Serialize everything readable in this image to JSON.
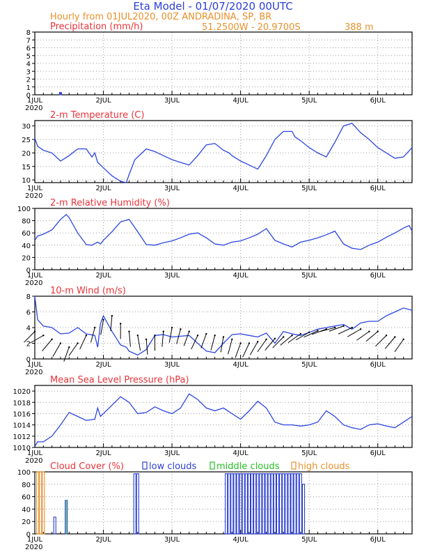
{
  "header": {
    "title": "Eta Model - 01/07/2020 00UTC",
    "subtitle": "Hourly from 01JUL2020, 00Z  ANDRADINA, SP, BR",
    "coords": "51.2500W - 20.9700S",
    "elevation": "388  m"
  },
  "colors": {
    "title": "#2b3fd6",
    "subtitle": "#e8902a",
    "panel_title": "#e8333a",
    "line": "#2b45e0",
    "low": "#2b3fd6",
    "middle": "#22c022",
    "high": "#e8902a",
    "grid": "#999999"
  },
  "time_axis": {
    "day_labels": [
      "1JUL",
      "2JUL",
      "3JUL",
      "4JUL",
      "5JUL",
      "6JUL"
    ],
    "year_label": "2020",
    "hours_total": 132
  },
  "chart_data": [
    {
      "id": "precip",
      "type": "bar",
      "title": "Precipitation (mm/h)",
      "ylim": [
        0,
        8
      ],
      "ticks": [
        0,
        1,
        2,
        3,
        4,
        5,
        6,
        7,
        8
      ],
      "bars": [
        {
          "h": 9,
          "v": 0.3
        }
      ]
    },
    {
      "id": "temp",
      "type": "line",
      "title": "2-m Temperature (C)",
      "ylim": [
        9,
        32
      ],
      "ticks": [
        10,
        15,
        20,
        25,
        30
      ],
      "x": [
        0,
        1,
        3,
        6,
        9,
        12,
        15,
        18,
        20,
        21,
        22,
        24,
        27,
        30,
        32,
        33,
        35,
        39,
        42,
        45,
        48,
        51,
        54,
        57,
        60,
        63,
        66,
        68,
        69,
        72,
        75,
        78,
        81,
        84,
        87,
        90,
        91,
        93,
        96,
        99,
        102,
        105,
        108,
        111,
        114,
        117,
        120,
        123,
        126,
        129,
        132
      ],
      "values": [
        25.5,
        22.5,
        21.0,
        20.0,
        17.0,
        19.0,
        21.5,
        21.5,
        18.5,
        20.0,
        16.5,
        14.5,
        11.5,
        9.5,
        9.0,
        12.0,
        17.5,
        21.5,
        20.5,
        19.0,
        17.5,
        16.5,
        15.5,
        19.0,
        23.0,
        23.5,
        21.0,
        20.0,
        19.0,
        17.0,
        15.5,
        14.0,
        19.0,
        25.0,
        28.0,
        28.0,
        26.0,
        24.5,
        22.0,
        20.0,
        18.5,
        24.0,
        30.0,
        31.0,
        27.5,
        25.0,
        22.0,
        20.0,
        18.0,
        18.5,
        22.0
      ]
    },
    {
      "id": "rh",
      "type": "line",
      "title": "2-m Relative Humidity (%)",
      "ylim": [
        0,
        100
      ],
      "ticks": [
        0,
        20,
        40,
        60,
        80,
        100
      ],
      "x": [
        0,
        1,
        3,
        6,
        9,
        11,
        12,
        15,
        18,
        20,
        22,
        23,
        24,
        27,
        30,
        33,
        36,
        39,
        42,
        45,
        48,
        51,
        54,
        57,
        60,
        63,
        66,
        69,
        72,
        75,
        78,
        81,
        84,
        87,
        90,
        93,
        96,
        99,
        102,
        105,
        108,
        111,
        114,
        117,
        120,
        123,
        126,
        129,
        131,
        132
      ],
      "values": [
        48,
        55,
        58,
        65,
        82,
        90,
        85,
        60,
        41,
        40,
        45,
        42,
        48,
        62,
        78,
        82,
        62,
        41,
        40,
        44,
        47,
        52,
        58,
        60,
        52,
        42,
        40,
        45,
        47,
        52,
        58,
        67,
        48,
        42,
        37,
        45,
        48,
        52,
        57,
        63,
        42,
        35,
        33,
        40,
        45,
        53,
        60,
        68,
        72,
        63
      ]
    },
    {
      "id": "wind",
      "type": "line",
      "title": "10-m Wind (m/s)",
      "ylim": [
        0,
        8
      ],
      "ticks": [
        0,
        2,
        4,
        6,
        8
      ],
      "x": [
        0,
        1,
        3,
        6,
        9,
        12,
        15,
        18,
        21,
        22,
        23,
        24,
        27,
        30,
        32,
        33,
        36,
        39,
        42,
        45,
        48,
        51,
        54,
        57,
        60,
        63,
        66,
        69,
        72,
        75,
        78,
        81,
        84,
        87,
        90,
        93,
        96,
        99,
        102,
        105,
        108,
        111,
        114,
        117,
        120,
        123,
        126,
        129,
        132
      ],
      "values": [
        8.0,
        5.0,
        4.2,
        4.0,
        3.2,
        3.3,
        4.0,
        3.2,
        3.0,
        1.5,
        4.5,
        5.5,
        3.5,
        1.8,
        1.5,
        1.0,
        0.5,
        1.2,
        3.0,
        3.1,
        2.8,
        2.9,
        3.0,
        2.0,
        1.0,
        0.8,
        2.0,
        3.1,
        3.2,
        3.0,
        2.8,
        3.3,
        2.0,
        3.5,
        3.2,
        3.0,
        3.4,
        3.8,
        4.0,
        4.2,
        4.4,
        3.8,
        4.6,
        4.8,
        4.8,
        5.5,
        6.0,
        6.5,
        6.2
      ],
      "barb_angles": [
        [
          0,
          3.5,
          225
        ],
        [
          3,
          3.0,
          210
        ],
        [
          6,
          2.5,
          230
        ],
        [
          9,
          2.0,
          240
        ],
        [
          12,
          1.5,
          250
        ],
        [
          15,
          2.0,
          235
        ],
        [
          18,
          3.0,
          245
        ],
        [
          21,
          4.0,
          255
        ],
        [
          24,
          5.0,
          260
        ],
        [
          27,
          5.5,
          265
        ],
        [
          30,
          4.5,
          270
        ],
        [
          33,
          3.5,
          275
        ],
        [
          36,
          3.0,
          280
        ],
        [
          39,
          2.5,
          275
        ],
        [
          42,
          3.0,
          270
        ],
        [
          45,
          3.5,
          265
        ],
        [
          48,
          4.0,
          260
        ],
        [
          51,
          3.8,
          255
        ],
        [
          54,
          3.5,
          250
        ],
        [
          57,
          3.0,
          245
        ],
        [
          60,
          3.2,
          250
        ],
        [
          63,
          3.0,
          255
        ],
        [
          66,
          2.8,
          260
        ],
        [
          69,
          2.5,
          255
        ],
        [
          72,
          2.0,
          250
        ],
        [
          75,
          2.0,
          245
        ],
        [
          78,
          2.2,
          240
        ],
        [
          81,
          2.5,
          235
        ],
        [
          84,
          2.6,
          230
        ],
        [
          87,
          2.8,
          225
        ],
        [
          90,
          3.0,
          220
        ],
        [
          93,
          3.2,
          215
        ],
        [
          96,
          3.4,
          210
        ],
        [
          99,
          3.6,
          205
        ],
        [
          102,
          3.8,
          200
        ],
        [
          105,
          4.0,
          195
        ],
        [
          108,
          4.2,
          200
        ],
        [
          111,
          4.0,
          205
        ],
        [
          114,
          3.8,
          210
        ],
        [
          117,
          3.5,
          215
        ],
        [
          120,
          3.5,
          220
        ],
        [
          123,
          3.0,
          225
        ],
        [
          126,
          2.8,
          230
        ],
        [
          129,
          2.5,
          235
        ]
      ]
    },
    {
      "id": "mslp",
      "type": "line",
      "title": "Mean Sea Level Pressure (hPa)",
      "ylim": [
        1010,
        1021
      ],
      "ticks": [
        1010,
        1012,
        1014,
        1016,
        1018,
        1020
      ],
      "x": [
        0,
        1,
        3,
        6,
        9,
        12,
        15,
        18,
        21,
        22,
        23,
        24,
        27,
        30,
        33,
        36,
        39,
        42,
        45,
        48,
        51,
        54,
        57,
        60,
        63,
        66,
        69,
        72,
        75,
        78,
        81,
        84,
        87,
        90,
        93,
        96,
        99,
        102,
        105,
        108,
        111,
        114,
        117,
        120,
        123,
        126,
        129,
        132
      ],
      "values": [
        1010.2,
        1011.0,
        1011.0,
        1012.0,
        1014.0,
        1016.2,
        1015.5,
        1014.8,
        1015.0,
        1017.0,
        1015.5,
        1016.0,
        1017.5,
        1019.0,
        1018.0,
        1016.0,
        1016.2,
        1017.2,
        1016.5,
        1016.0,
        1017.0,
        1019.5,
        1018.5,
        1017.0,
        1016.5,
        1017.0,
        1016.0,
        1015.0,
        1016.5,
        1018.2,
        1017.0,
        1014.5,
        1014.0,
        1014.0,
        1013.8,
        1014.0,
        1014.5,
        1016.5,
        1015.5,
        1014.0,
        1013.5,
        1013.2,
        1014.0,
        1014.2,
        1013.8,
        1013.5,
        1014.5,
        1015.5
      ]
    },
    {
      "id": "cloud",
      "type": "bar",
      "title": "Cloud Cover (%)",
      "ylim": [
        0,
        100
      ],
      "ticks": [
        0,
        20,
        40,
        60,
        80,
        100
      ],
      "legend": {
        "low": "low clouds",
        "middle": "middle clouds",
        "high": "high clouds"
      },
      "bars": [
        {
          "h": 1,
          "v": 100,
          "cls": "high"
        },
        {
          "h": 2,
          "v": 100,
          "cls": "high"
        },
        {
          "h": 3,
          "v": 100,
          "cls": "high"
        },
        {
          "h": 7,
          "v": 27,
          "cls": "low"
        },
        {
          "h": 11,
          "v": 54,
          "cls": "low"
        },
        {
          "h": 11,
          "v": 54,
          "cls": "middle"
        },
        {
          "h": 35,
          "v": 97,
          "cls": "low"
        },
        {
          "h": 36,
          "v": 97,
          "cls": "low"
        },
        {
          "h": 67,
          "v": 97,
          "cls": "low"
        },
        {
          "h": 68,
          "v": 97,
          "cls": "low"
        },
        {
          "h": 69,
          "v": 97,
          "cls": "low"
        },
        {
          "h": 70,
          "v": 97,
          "cls": "low"
        },
        {
          "h": 71,
          "v": 97,
          "cls": "low"
        },
        {
          "h": 72,
          "v": 97,
          "cls": "low"
        },
        {
          "h": 73,
          "v": 97,
          "cls": "low"
        },
        {
          "h": 74,
          "v": 97,
          "cls": "low"
        },
        {
          "h": 75,
          "v": 97,
          "cls": "low"
        },
        {
          "h": 76,
          "v": 97,
          "cls": "low"
        },
        {
          "h": 77,
          "v": 97,
          "cls": "low"
        },
        {
          "h": 78,
          "v": 97,
          "cls": "low"
        },
        {
          "h": 79,
          "v": 97,
          "cls": "low"
        },
        {
          "h": 80,
          "v": 97,
          "cls": "low"
        },
        {
          "h": 81,
          "v": 97,
          "cls": "low"
        },
        {
          "h": 82,
          "v": 97,
          "cls": "low"
        },
        {
          "h": 83,
          "v": 97,
          "cls": "low"
        },
        {
          "h": 84,
          "v": 97,
          "cls": "low"
        },
        {
          "h": 85,
          "v": 97,
          "cls": "low"
        },
        {
          "h": 86,
          "v": 97,
          "cls": "low"
        },
        {
          "h": 87,
          "v": 97,
          "cls": "low"
        },
        {
          "h": 88,
          "v": 97,
          "cls": "low"
        },
        {
          "h": 89,
          "v": 97,
          "cls": "low"
        },
        {
          "h": 90,
          "v": 97,
          "cls": "low"
        },
        {
          "h": 91,
          "v": 97,
          "cls": "low"
        },
        {
          "h": 92,
          "v": 97,
          "cls": "low"
        },
        {
          "h": 93,
          "v": 97,
          "cls": "low"
        },
        {
          "h": 94,
          "v": 80,
          "cls": "low"
        }
      ]
    }
  ]
}
